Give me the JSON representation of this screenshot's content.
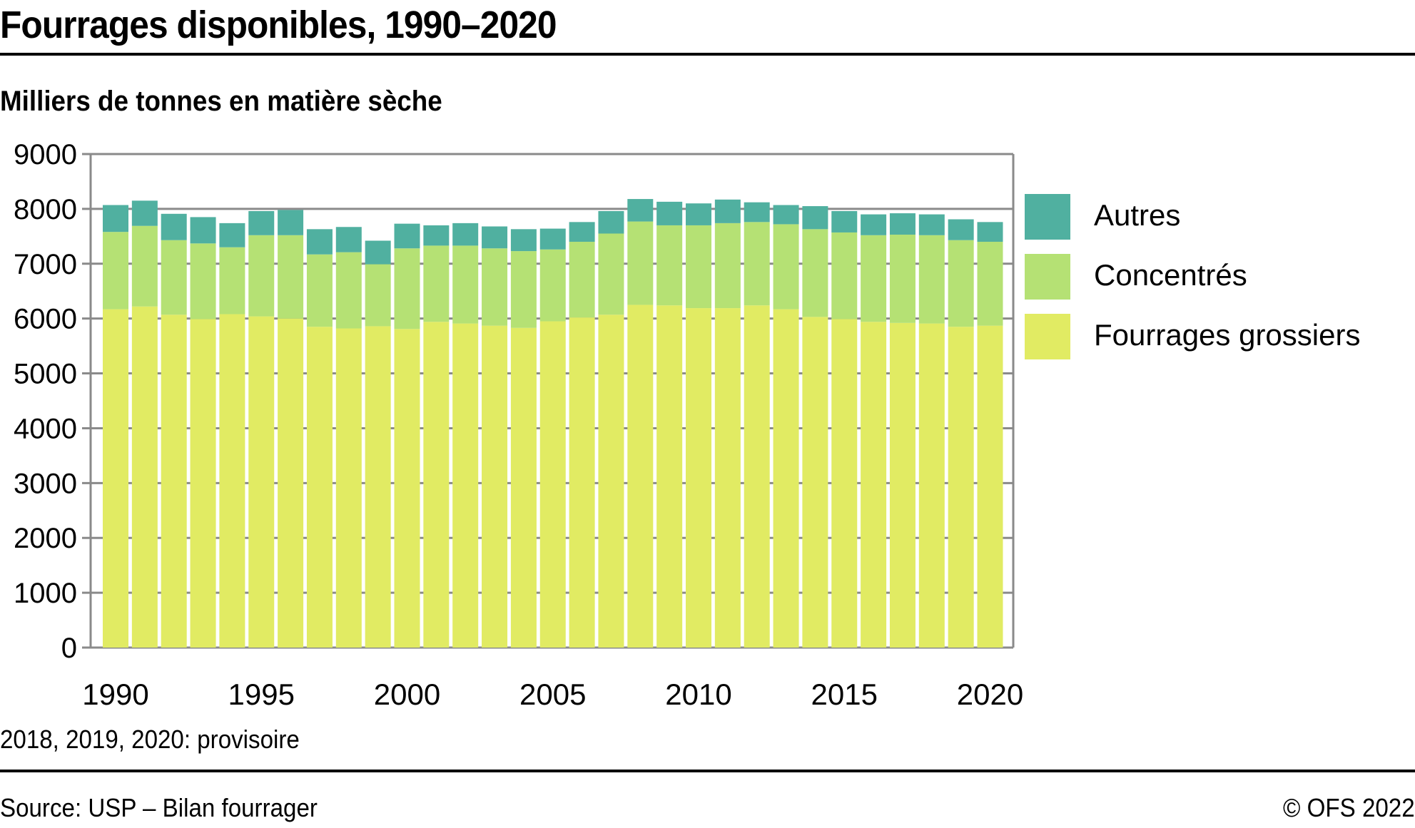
{
  "header": {
    "title": "Fourrages disponibles, 1990–2020",
    "subtitle": "Milliers de tonnes en matière sèche"
  },
  "footer": {
    "note": "2018, 2019, 2020: provisoire",
    "source": "Source: USP – Bilan fourrager",
    "copyright": "© OFS 2022"
  },
  "chart_data": {
    "type": "bar",
    "stacked": true,
    "title": "Fourrages disponibles, 1990–2020",
    "subtitle": "Milliers de tonnes en matière sèche",
    "xlabel": "",
    "ylabel": "Milliers de tonnes en matière sèche",
    "ylim": [
      0,
      9000
    ],
    "yticks": [
      0,
      1000,
      2000,
      3000,
      4000,
      5000,
      6000,
      7000,
      8000,
      9000
    ],
    "xtick_labels": [
      "1990",
      "1995",
      "2000",
      "2005",
      "2010",
      "2015",
      "2020"
    ],
    "grid": true,
    "legend_position": "right",
    "categories": [
      "1990",
      "1991",
      "1992",
      "1993",
      "1994",
      "1995",
      "1996",
      "1997",
      "1998",
      "1999",
      "2000",
      "2001",
      "2002",
      "2003",
      "2004",
      "2005",
      "2006",
      "2007",
      "2008",
      "2009",
      "2010",
      "2011",
      "2012",
      "2013",
      "2014",
      "2015",
      "2016",
      "2017",
      "2018",
      "2019",
      "2020"
    ],
    "series": [
      {
        "name": "Fourrages grossiers",
        "color": "#E1EB63",
        "values": [
          6170,
          6220,
          6070,
          5990,
          6080,
          6040,
          6000,
          5850,
          5820,
          5860,
          5810,
          5940,
          5910,
          5870,
          5830,
          5950,
          6020,
          6070,
          6250,
          6240,
          6190,
          6190,
          6240,
          6170,
          6030,
          5990,
          5940,
          5920,
          5910,
          5850,
          5870
        ]
      },
      {
        "name": "Concentrés",
        "color": "#B5E174",
        "values": [
          1410,
          1470,
          1360,
          1380,
          1220,
          1480,
          1520,
          1320,
          1390,
          1130,
          1470,
          1390,
          1420,
          1410,
          1400,
          1310,
          1380,
          1480,
          1520,
          1460,
          1510,
          1550,
          1520,
          1550,
          1600,
          1580,
          1580,
          1610,
          1610,
          1580,
          1530
        ]
      },
      {
        "name": "Autres",
        "color": "#50B0A0",
        "values": [
          490,
          460,
          480,
          480,
          440,
          440,
          460,
          460,
          460,
          430,
          450,
          370,
          410,
          400,
          400,
          380,
          360,
          410,
          410,
          430,
          400,
          430,
          360,
          350,
          420,
          390,
          380,
          390,
          380,
          380,
          360
        ]
      }
    ],
    "notes": "2018, 2019, 2020: provisoire"
  }
}
